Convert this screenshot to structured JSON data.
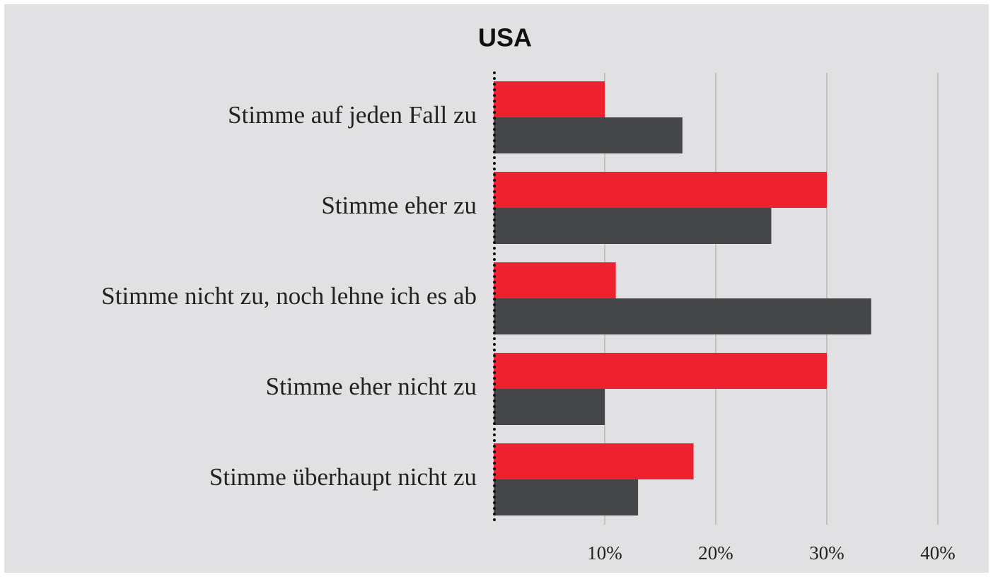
{
  "chart_data": {
    "type": "hbar",
    "title": "USA",
    "categories": [
      "Stimme auf jeden Fall zu",
      "Stimme eher zu",
      "Stimme nicht zu, noch lehne ich es ab",
      "Stimme eher nicht zu",
      "Stimme überhaupt nicht zu"
    ],
    "series": [
      {
        "color": "#ed2130",
        "values": [
          10,
          30,
          11,
          30,
          18
        ]
      },
      {
        "color": "#454648",
        "values": [
          17,
          25,
          34,
          10,
          13
        ]
      }
    ],
    "xlim": [
      0,
      40
    ],
    "xticks": [
      {
        "value": 10,
        "label": "10%"
      },
      {
        "value": 20,
        "label": "20%"
      },
      {
        "value": 30,
        "label": "30%"
      },
      {
        "value": 40,
        "label": "40%"
      }
    ],
    "grid": true
  }
}
